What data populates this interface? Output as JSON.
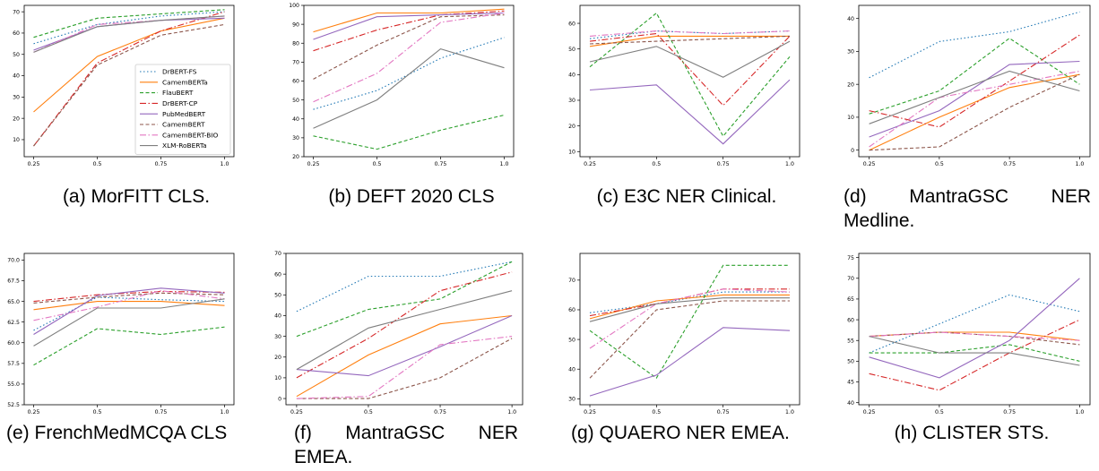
{
  "colors": {
    "DrBERT-FS": "#1f77b4",
    "CamemBERTa": "#ff7f0e",
    "FlauBERT": "#2ca02c",
    "DrBERT-CP": "#d62728",
    "PubMedBERT": "#9467bd",
    "CamemBERT": "#8c564b",
    "CamemBERT-BIO": "#e377c2",
    "XLM-RoBERTa": "#7f7f7f"
  },
  "chart_data": [
    {
      "type": "line",
      "caption": "(a) MorFITT CLS.",
      "x": [
        0.25,
        0.5,
        0.75,
        1.0
      ],
      "xticks": [
        "0.25",
        "0.5",
        "0.75",
        "1.0"
      ],
      "ylim": [
        2,
        73
      ],
      "yticks": [
        10,
        20,
        30,
        40,
        50,
        60,
        70
      ],
      "grid": false,
      "legend": "bottom-right",
      "series": [
        {
          "name": "DrBERT-FS",
          "values": [
            55,
            64,
            68,
            70
          ]
        },
        {
          "name": "CamemBERTa",
          "values": [
            23,
            49,
            61,
            67
          ]
        },
        {
          "name": "FlauBERT",
          "values": [
            58,
            67,
            69,
            71
          ]
        },
        {
          "name": "DrBERT-CP",
          "values": [
            7,
            46,
            61,
            70
          ]
        },
        {
          "name": "PubMedBERT",
          "values": [
            52,
            63,
            66,
            67
          ]
        },
        {
          "name": "CamemBERT",
          "values": [
            7,
            45,
            59,
            64
          ]
        },
        {
          "name": "CamemBERT-BIO",
          "values": [
            51,
            64,
            66,
            68
          ]
        },
        {
          "name": "XLM-RoBERTa",
          "values": [
            51,
            63,
            66,
            68
          ]
        }
      ]
    },
    {
      "type": "line",
      "caption": "(b) DEFT 2020 CLS",
      "x": [
        0.25,
        0.5,
        0.75,
        1.0
      ],
      "xticks": [
        "0.25",
        "0.5",
        "0.75",
        "1.0"
      ],
      "ylim": [
        20,
        100
      ],
      "yticks": [
        20,
        30,
        40,
        50,
        60,
        70,
        80,
        90,
        100
      ],
      "grid": false,
      "series": [
        {
          "name": "DrBERT-FS",
          "values": [
            45,
            55,
            72,
            83
          ]
        },
        {
          "name": "CamemBERTa",
          "values": [
            86,
            96,
            96,
            98
          ]
        },
        {
          "name": "FlauBERT",
          "values": [
            31,
            24,
            34,
            42
          ]
        },
        {
          "name": "DrBERT-CP",
          "values": [
            76,
            87,
            95,
            97
          ]
        },
        {
          "name": "PubMedBERT",
          "values": [
            82,
            94,
            95,
            96
          ]
        },
        {
          "name": "CamemBERT",
          "values": [
            61,
            79,
            94,
            95
          ]
        },
        {
          "name": "CamemBERT-BIO",
          "values": [
            49,
            64,
            91,
            96
          ]
        },
        {
          "name": "XLM-RoBERTa",
          "values": [
            35,
            50,
            77,
            67
          ]
        }
      ]
    },
    {
      "type": "line",
      "caption": "(c) E3C NER Clinical.",
      "x": [
        0.25,
        0.5,
        0.75,
        1.0
      ],
      "xticks": [
        "0.25",
        "0.5",
        "0.75",
        "1.0"
      ],
      "ylim": [
        8,
        67
      ],
      "yticks": [
        10,
        20,
        30,
        40,
        50,
        60
      ],
      "grid": false,
      "series": [
        {
          "name": "DrBERT-FS",
          "values": [
            54,
            57,
            56,
            57
          ]
        },
        {
          "name": "CamemBERTa",
          "values": [
            51,
            55,
            55,
            55
          ]
        },
        {
          "name": "FlauBERT",
          "values": [
            43,
            64,
            16,
            47
          ]
        },
        {
          "name": "DrBERT-CP",
          "values": [
            53,
            56,
            28,
            55
          ]
        },
        {
          "name": "PubMedBERT",
          "values": [
            34,
            36,
            13,
            38
          ]
        },
        {
          "name": "CamemBERT",
          "values": [
            52,
            53,
            54,
            55
          ]
        },
        {
          "name": "CamemBERT-BIO",
          "values": [
            55,
            57,
            56,
            57
          ]
        },
        {
          "name": "XLM-RoBERTa",
          "values": [
            45,
            51,
            39,
            53
          ]
        }
      ]
    },
    {
      "type": "line",
      "caption": "(d) MantraGSC NER Medline.",
      "x": [
        0.25,
        0.5,
        0.75,
        1.0
      ],
      "xticks": [
        "0.25",
        "0.5",
        "0.75",
        "1.0"
      ],
      "ylim": [
        -2,
        44
      ],
      "yticks": [
        0,
        10,
        20,
        30,
        40
      ],
      "grid": false,
      "series": [
        {
          "name": "DrBERT-FS",
          "values": [
            22,
            33,
            36,
            42
          ]
        },
        {
          "name": "CamemBERTa",
          "values": [
            0,
            10,
            19,
            23
          ]
        },
        {
          "name": "FlauBERT",
          "values": [
            11,
            18,
            34,
            20
          ]
        },
        {
          "name": "DrBERT-CP",
          "values": [
            12,
            7,
            21,
            35
          ]
        },
        {
          "name": "PubMedBERT",
          "values": [
            4,
            12,
            26,
            27
          ]
        },
        {
          "name": "CamemBERT",
          "values": [
            0,
            1,
            13,
            23
          ]
        },
        {
          "name": "CamemBERT-BIO",
          "values": [
            1,
            16,
            20,
            24
          ]
        },
        {
          "name": "XLM-RoBERTa",
          "values": [
            8,
            16,
            24,
            18
          ]
        }
      ]
    },
    {
      "type": "line",
      "caption": "(e) FrenchMedMCQA CLS",
      "x": [
        0.25,
        0.5,
        0.75,
        1.0
      ],
      "xticks": [
        "0.25",
        "0.5",
        "0.75",
        "1.0"
      ],
      "ylim": [
        52.5,
        70.8
      ],
      "yticks": [
        52.5,
        55.0,
        57.5,
        60.0,
        62.5,
        65.0,
        67.5,
        70.0
      ],
      "yticklabels": [
        "52.5",
        "55.0",
        "57.5",
        "60.0",
        "62.5",
        "65.0",
        "67.5",
        "70.0"
      ],
      "grid": false,
      "series": [
        {
          "name": "DrBERT-FS",
          "values": [
            61.5,
            65.5,
            65.2,
            65.0
          ]
        },
        {
          "name": "CamemBERTa",
          "values": [
            64.0,
            65.0,
            65.0,
            64.5
          ]
        },
        {
          "name": "FlauBERT",
          "values": [
            57.3,
            61.7,
            61.0,
            61.9
          ]
        },
        {
          "name": "DrBERT-CP",
          "values": [
            65.0,
            65.8,
            66.2,
            66.1
          ]
        },
        {
          "name": "PubMedBERT",
          "values": [
            61.0,
            65.7,
            66.6,
            66.0
          ]
        },
        {
          "name": "CamemBERT",
          "values": [
            64.8,
            65.5,
            66.0,
            65.8
          ]
        },
        {
          "name": "CamemBERT-BIO",
          "values": [
            62.7,
            64.3,
            66.3,
            65.3
          ]
        },
        {
          "name": "XLM-RoBERTa",
          "values": [
            59.6,
            64.2,
            64.2,
            65.3
          ]
        }
      ]
    },
    {
      "type": "line",
      "caption": "(f) MantraGSC NER EMEA.",
      "x": [
        0.25,
        0.5,
        0.75,
        1.0
      ],
      "xticks": [
        "0.25",
        "0.5",
        "0.75",
        "1.0"
      ],
      "ylim": [
        -3,
        70
      ],
      "yticks": [
        0,
        10,
        20,
        30,
        40,
        50,
        60,
        70
      ],
      "grid": false,
      "series": [
        {
          "name": "DrBERT-FS",
          "values": [
            42,
            59,
            59,
            66
          ]
        },
        {
          "name": "CamemBERTa",
          "values": [
            1,
            21,
            36,
            40
          ]
        },
        {
          "name": "FlauBERT",
          "values": [
            30,
            43,
            48,
            66
          ]
        },
        {
          "name": "DrBERT-CP",
          "values": [
            10,
            29,
            52,
            61
          ]
        },
        {
          "name": "PubMedBERT",
          "values": [
            14,
            11,
            25,
            40
          ]
        },
        {
          "name": "CamemBERT",
          "values": [
            0,
            0,
            10,
            29
          ]
        },
        {
          "name": "CamemBERT-BIO",
          "values": [
            0,
            1,
            26,
            30
          ]
        },
        {
          "name": "XLM-RoBERTa",
          "values": [
            14,
            34,
            43,
            52
          ]
        }
      ]
    },
    {
      "type": "line",
      "caption": "(g) QUAERO NER EMEA.",
      "x": [
        0.25,
        0.5,
        0.75,
        1.0
      ],
      "xticks": [
        "0.25",
        "0.5",
        "0.75",
        "1.0"
      ],
      "ylim": [
        28,
        79
      ],
      "yticks": [
        30,
        40,
        50,
        60,
        70
      ],
      "grid": false,
      "series": [
        {
          "name": "DrBERT-FS",
          "values": [
            59,
            62,
            66,
            66
          ]
        },
        {
          "name": "CamemBERTa",
          "values": [
            57,
            63,
            65,
            65
          ]
        },
        {
          "name": "FlauBERT",
          "values": [
            53,
            37,
            75,
            75
          ]
        },
        {
          "name": "DrBERT-CP",
          "values": [
            58,
            62,
            67,
            67
          ]
        },
        {
          "name": "PubMedBERT",
          "values": [
            31,
            38,
            54,
            53
          ]
        },
        {
          "name": "CamemBERT",
          "values": [
            37,
            60,
            63,
            63
          ]
        },
        {
          "name": "CamemBERT-BIO",
          "values": [
            47,
            62,
            67,
            66
          ]
        },
        {
          "name": "XLM-RoBERTa",
          "values": [
            56,
            62,
            64,
            64
          ]
        }
      ]
    },
    {
      "type": "line",
      "caption": "(h) CLISTER STS.",
      "x": [
        0.25,
        0.5,
        0.75,
        1.0
      ],
      "xticks": [
        "0.25",
        "0.5",
        "0.75",
        "1.0"
      ],
      "ylim": [
        39.5,
        76
      ],
      "yticks": [
        40,
        45,
        50,
        55,
        60,
        65,
        70,
        75
      ],
      "grid": false,
      "series": [
        {
          "name": "DrBERT-FS",
          "values": [
            52,
            59,
            66,
            62
          ]
        },
        {
          "name": "CamemBERTa",
          "values": [
            56,
            57,
            57,
            55
          ]
        },
        {
          "name": "FlauBERT",
          "values": [
            52,
            52,
            54,
            50
          ]
        },
        {
          "name": "DrBERT-CP",
          "values": [
            47,
            43,
            52,
            60
          ]
        },
        {
          "name": "PubMedBERT",
          "values": [
            51,
            46,
            55,
            70
          ]
        },
        {
          "name": "CamemBERT",
          "values": [
            56,
            57,
            56,
            54
          ]
        },
        {
          "name": "CamemBERT-BIO",
          "values": [
            56,
            57,
            56,
            55
          ]
        },
        {
          "name": "XLM-RoBERTa",
          "values": [
            56,
            52,
            52,
            49
          ]
        }
      ]
    }
  ]
}
